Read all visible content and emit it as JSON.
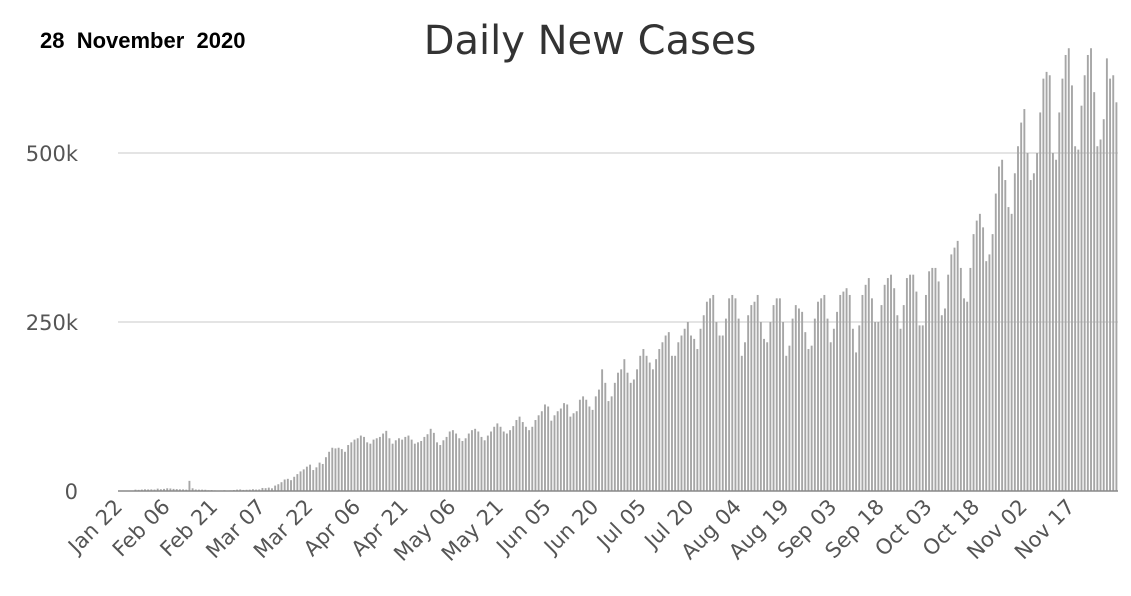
{
  "header": {
    "date": "28  November  2020",
    "title": "Daily New Cases"
  },
  "colors": {
    "bar": "#a6a6a6",
    "grid": "#c8c8c8",
    "axis": "#888888",
    "text": "#555555"
  },
  "chart_data": {
    "type": "bar",
    "title": "Daily New Cases",
    "xlabel": "",
    "ylabel": "",
    "ylim": [
      0,
      660000
    ],
    "grid": true,
    "legend": "none",
    "start_date": "2020-01-22",
    "yticks": [
      {
        "value": 0,
        "label": "0"
      },
      {
        "value": 250000,
        "label": "250k"
      },
      {
        "value": 500000,
        "label": "500k"
      }
    ],
    "xticks": [
      {
        "index": 0,
        "label": "Jan 22"
      },
      {
        "index": 15,
        "label": "Feb 06"
      },
      {
        "index": 30,
        "label": "Feb 21"
      },
      {
        "index": 45,
        "label": "Mar 07"
      },
      {
        "index": 60,
        "label": "Mar 22"
      },
      {
        "index": 75,
        "label": "Apr 06"
      },
      {
        "index": 90,
        "label": "Apr 21"
      },
      {
        "index": 105,
        "label": "May 06"
      },
      {
        "index": 120,
        "label": "May 21"
      },
      {
        "index": 135,
        "label": "Jun 05"
      },
      {
        "index": 150,
        "label": "Jun 20"
      },
      {
        "index": 165,
        "label": "Jul 05"
      },
      {
        "index": 180,
        "label": "Jul 20"
      },
      {
        "index": 195,
        "label": "Aug 04"
      },
      {
        "index": 210,
        "label": "Aug 19"
      },
      {
        "index": 225,
        "label": "Sep 03"
      },
      {
        "index": 240,
        "label": "Sep 18"
      },
      {
        "index": 255,
        "label": "Oct 03"
      },
      {
        "index": 270,
        "label": "Oct 18"
      },
      {
        "index": 285,
        "label": "Nov 02"
      },
      {
        "index": 300,
        "label": "Nov 17"
      }
    ],
    "series": [
      {
        "values": [
          600,
          100,
          600,
          500,
          700,
          2000,
          1700,
          2100,
          2500,
          2300,
          2400,
          2100,
          3500,
          2600,
          3100,
          4000,
          3700,
          3100,
          2800,
          2500,
          2400,
          2000,
          15000,
          4000,
          2200,
          2000,
          2000,
          1800,
          1100,
          1300,
          900,
          600,
          800,
          1100,
          700,
          900,
          1400,
          2000,
          2300,
          1600,
          1800,
          2000,
          2600,
          2100,
          2300,
          4500,
          4200,
          5000,
          4000,
          8000,
          10000,
          13000,
          17000,
          18000,
          16000,
          21000,
          25000,
          29000,
          32000,
          36000,
          39000,
          31000,
          35000,
          42000,
          40000,
          50000,
          58000,
          64000,
          63000,
          64000,
          62000,
          58000,
          68000,
          72000,
          76000,
          78000,
          82000,
          80000,
          72000,
          70000,
          76000,
          78000,
          80000,
          85000,
          89000,
          78000,
          70000,
          75000,
          78000,
          76000,
          80000,
          82000,
          76000,
          70000,
          72000,
          74000,
          80000,
          84000,
          92000,
          86000,
          72000,
          68000,
          75000,
          80000,
          88000,
          90000,
          85000,
          78000,
          74000,
          78000,
          85000,
          90000,
          92000,
          88000,
          80000,
          75000,
          82000,
          88000,
          95000,
          100000,
          95000,
          88000,
          85000,
          90000,
          96000,
          105000,
          110000,
          102000,
          95000,
          90000,
          95000,
          105000,
          112000,
          118000,
          128000,
          125000,
          104000,
          112000,
          118000,
          122000,
          130000,
          128000,
          110000,
          115000,
          118000,
          135000,
          140000,
          135000,
          125000,
          120000,
          140000,
          150000,
          180000,
          160000,
          133000,
          140000,
          160000,
          175000,
          180000,
          195000,
          175000,
          160000,
          165000,
          180000,
          200000,
          210000,
          200000,
          190000,
          180000,
          195000,
          210000,
          220000,
          230000,
          235000,
          200000,
          200000,
          220000,
          230000,
          240000,
          250000,
          230000,
          225000,
          210000,
          240000,
          260000,
          280000,
          285000,
          290000,
          250000,
          230000,
          230000,
          255000,
          285000,
          290000,
          285000,
          255000,
          200000,
          220000,
          260000,
          275000,
          280000,
          290000,
          250000,
          225000,
          220000,
          250000,
          275000,
          285000,
          285000,
          250000,
          200000,
          215000,
          255000,
          275000,
          270000,
          265000,
          235000,
          210000,
          215000,
          255000,
          280000,
          285000,
          290000,
          255000,
          220000,
          240000,
          265000,
          290000,
          295000,
          300000,
          290000,
          240000,
          205000,
          245000,
          290000,
          305000,
          315000,
          285000,
          250000,
          250000,
          275000,
          305000,
          315000,
          320000,
          300000,
          260000,
          240000,
          275000,
          315000,
          320000,
          320000,
          295000,
          245000,
          245000,
          290000,
          325000,
          330000,
          330000,
          310000,
          260000,
          270000,
          320000,
          350000,
          360000,
          370000,
          330000,
          285000,
          280000,
          330000,
          380000,
          400000,
          410000,
          390000,
          340000,
          350000,
          380000,
          440000,
          480000,
          490000,
          460000,
          420000,
          410000,
          470000,
          510000,
          545000,
          565000,
          500000,
          460000,
          470000,
          500000,
          560000,
          610000,
          620000,
          615000,
          500000,
          490000,
          560000,
          610000,
          645000,
          655000,
          600000,
          510000,
          505000,
          570000,
          615000,
          645000,
          655000,
          590000,
          510000,
          520000,
          550000,
          640000,
          610000,
          615000,
          575000
        ]
      }
    ]
  }
}
